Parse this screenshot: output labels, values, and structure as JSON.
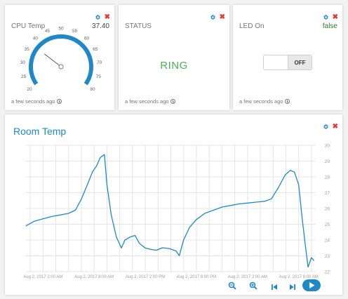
{
  "widgets": {
    "cpu": {
      "title": "CPU Temp",
      "value": "37.40",
      "gauge_min": 20,
      "gauge_max": 80,
      "gauge_ticks": [
        "20",
        "25",
        "30",
        "35",
        "40",
        "45",
        "50",
        "55",
        "60",
        "65",
        "70",
        "75",
        "80"
      ],
      "footer": "a few seconds ago"
    },
    "status": {
      "title": "STATUS",
      "value": "RING",
      "footer": "a few seconds ago"
    },
    "led": {
      "title": "LED On",
      "value": "false",
      "toggle_label": "OFF",
      "footer": "a few seconds ago"
    }
  },
  "colors": {
    "accent": "#1e88c8",
    "close": "#e53935",
    "status_green": "#4caf50",
    "value_green": "#2e7d32"
  },
  "room": {
    "title": "Room Temp",
    "controls": [
      "zoom-out-icon",
      "zoom-in-icon",
      "skip-previous-icon",
      "skip-next-icon",
      "play-icon"
    ]
  },
  "chart_data": {
    "type": "line",
    "title": "Room Temp",
    "xlabel": "",
    "ylabel": "",
    "ylim": [
      22,
      30
    ],
    "yticks": [
      "22",
      "23",
      "24",
      "25",
      "26",
      "27",
      "28",
      "29",
      "30"
    ],
    "xticks": [
      "Aug 2, 2017 2:00 AM",
      "Aug 2, 2017 8:00 AM",
      "Aug 2, 2017 2:00 PM",
      "Aug 2, 2017 8:00 PM",
      "Aug 2, 2017 2:00 AM",
      "Aug 2, 2017 8:00 AM"
    ],
    "x_hours": [
      0,
      6,
      12,
      18,
      24,
      30
    ],
    "grid": true,
    "series": [
      {
        "points": [
          [
            -2,
            24.9
          ],
          [
            -1,
            25.2
          ],
          [
            0,
            25.35
          ],
          [
            1,
            25.5
          ],
          [
            2,
            25.6
          ],
          [
            3,
            25.7
          ],
          [
            3.8,
            25.9
          ],
          [
            4.5,
            26.6
          ],
          [
            5.2,
            27.5
          ],
          [
            5.8,
            28.3
          ],
          [
            6.3,
            28.7
          ],
          [
            6.7,
            29.2
          ],
          [
            7.2,
            29.4
          ],
          [
            7.5,
            27.5
          ],
          [
            8.0,
            25.6
          ],
          [
            8.6,
            24.2
          ],
          [
            9.2,
            23.5
          ],
          [
            9.6,
            24.0
          ],
          [
            10.2,
            24.2
          ],
          [
            10.8,
            24.3
          ],
          [
            11.3,
            23.8
          ],
          [
            12.0,
            23.5
          ],
          [
            12.7,
            23.4
          ],
          [
            13.3,
            23.35
          ],
          [
            14.0,
            23.5
          ],
          [
            14.8,
            23.45
          ],
          [
            15.6,
            23.3
          ],
          [
            16.0,
            23.0
          ],
          [
            16.5,
            24.0
          ],
          [
            17.2,
            24.8
          ],
          [
            18.0,
            25.3
          ],
          [
            19.0,
            25.7
          ],
          [
            20.0,
            25.9
          ],
          [
            21.0,
            26.1
          ],
          [
            22.0,
            26.2
          ],
          [
            23.0,
            26.3
          ],
          [
            24.0,
            26.35
          ],
          [
            25.0,
            26.4
          ],
          [
            26.0,
            26.45
          ],
          [
            26.8,
            26.6
          ],
          [
            27.6,
            27.3
          ],
          [
            28.4,
            28.1
          ],
          [
            29.0,
            28.4
          ],
          [
            29.5,
            28.3
          ],
          [
            30.0,
            27.5
          ],
          [
            30.4,
            25.4
          ],
          [
            30.8,
            23.6
          ],
          [
            31.1,
            22.3
          ],
          [
            31.5,
            22.9
          ],
          [
            31.8,
            22.7
          ]
        ]
      }
    ]
  }
}
